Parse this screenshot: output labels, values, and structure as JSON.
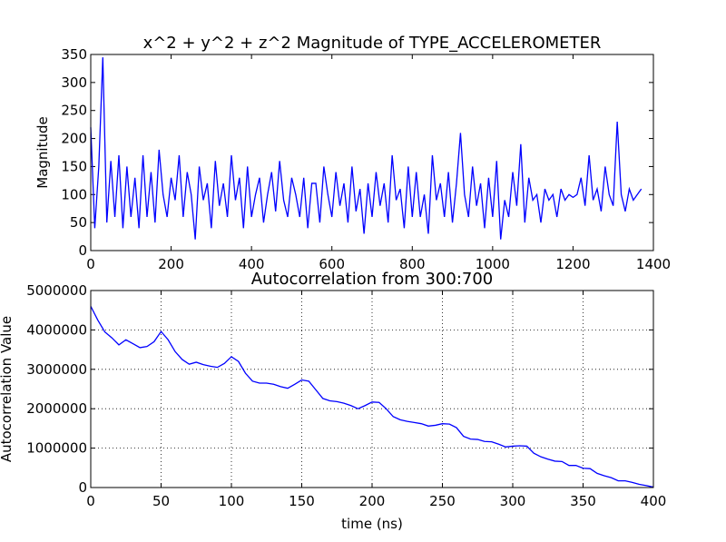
{
  "chart_data": [
    {
      "type": "line",
      "title": "x^2 + y^2 + z^2 Magnitude of TYPE_ACCELEROMETER",
      "ylabel": "Magnitude",
      "color": "#0000ff",
      "grid": false,
      "x": [
        0,
        10,
        20,
        30,
        40,
        50,
        60,
        70,
        80,
        90,
        100,
        110,
        120,
        130,
        140,
        150,
        160,
        170,
        180,
        190,
        200,
        210,
        220,
        230,
        240,
        250,
        260,
        270,
        280,
        290,
        300,
        310,
        320,
        330,
        340,
        350,
        360,
        370,
        380,
        390,
        400,
        410,
        420,
        430,
        440,
        450,
        460,
        470,
        480,
        490,
        500,
        510,
        520,
        530,
        540,
        550,
        560,
        570,
        580,
        590,
        600,
        610,
        620,
        630,
        640,
        650,
        660,
        670,
        680,
        690,
        700,
        710,
        720,
        730,
        740,
        750,
        760,
        770,
        780,
        790,
        800,
        810,
        820,
        830,
        840,
        850,
        860,
        870,
        880,
        890,
        900,
        910,
        920,
        930,
        940,
        950,
        960,
        970,
        980,
        990,
        1000,
        1010,
        1020,
        1030,
        1040,
        1050,
        1060,
        1070,
        1080,
        1090,
        1100,
        1110,
        1120,
        1130,
        1140,
        1150,
        1160,
        1170,
        1180,
        1190,
        1200,
        1210,
        1220,
        1230,
        1240,
        1250,
        1260,
        1270,
        1280,
        1290,
        1300,
        1310,
        1320,
        1330,
        1340,
        1350,
        1360,
        1370
      ],
      "values": [
        220,
        40,
        150,
        345,
        50,
        160,
        60,
        170,
        40,
        150,
        60,
        130,
        40,
        170,
        60,
        140,
        50,
        180,
        100,
        60,
        130,
        90,
        170,
        60,
        140,
        100,
        20,
        150,
        90,
        120,
        40,
        160,
        80,
        120,
        60,
        170,
        90,
        130,
        40,
        150,
        60,
        100,
        130,
        50,
        100,
        140,
        70,
        160,
        90,
        60,
        130,
        100,
        60,
        130,
        40,
        120,
        120,
        50,
        150,
        100,
        60,
        140,
        80,
        120,
        50,
        150,
        70,
        110,
        30,
        120,
        60,
        140,
        80,
        120,
        50,
        170,
        90,
        110,
        40,
        150,
        60,
        140,
        60,
        100,
        30,
        170,
        90,
        120,
        60,
        140,
        50,
        120,
        210,
        100,
        60,
        150,
        80,
        120,
        40,
        130,
        60,
        160,
        20,
        90,
        60,
        140,
        80,
        190,
        50,
        130,
        90,
        100,
        50,
        110,
        90,
        100,
        60,
        110,
        90,
        100,
        95,
        100,
        130,
        80,
        170,
        90,
        110,
        70,
        150,
        100,
        80,
        230,
        100,
        70,
        110,
        90,
        100,
        110
      ],
      "xlim": [
        0,
        1400
      ],
      "xticks": [
        0,
        200,
        400,
        600,
        800,
        1000,
        1200,
        1400
      ],
      "ylim": [
        0,
        350
      ],
      "yticks": [
        0,
        50,
        100,
        150,
        200,
        250,
        300,
        350
      ]
    },
    {
      "type": "line",
      "title": "Autocorrelation from 300:700",
      "xlabel": "time (ns)",
      "ylabel": "Autocorrelation Value",
      "color": "#0000ff",
      "grid": true,
      "x": [
        0,
        5,
        10,
        15,
        20,
        25,
        30,
        35,
        40,
        45,
        50,
        55,
        60,
        65,
        70,
        75,
        80,
        85,
        90,
        95,
        100,
        105,
        110,
        115,
        120,
        125,
        130,
        135,
        140,
        145,
        150,
        155,
        160,
        165,
        170,
        175,
        180,
        185,
        190,
        195,
        200,
        205,
        210,
        215,
        220,
        225,
        230,
        235,
        240,
        245,
        250,
        255,
        260,
        265,
        270,
        275,
        280,
        285,
        290,
        295,
        300,
        305,
        310,
        315,
        320,
        325,
        330,
        335,
        340,
        345,
        350,
        355,
        360,
        365,
        370,
        375,
        380,
        385,
        390,
        395,
        400
      ],
      "values": [
        4600000,
        4250000,
        3950000,
        3800000,
        3620000,
        3750000,
        3650000,
        3550000,
        3580000,
        3700000,
        3960000,
        3750000,
        3450000,
        3250000,
        3130000,
        3180000,
        3120000,
        3080000,
        3050000,
        3150000,
        3320000,
        3200000,
        2900000,
        2700000,
        2650000,
        2650000,
        2620000,
        2560000,
        2520000,
        2620000,
        2730000,
        2700000,
        2480000,
        2260000,
        2200000,
        2180000,
        2140000,
        2080000,
        2000000,
        2080000,
        2170000,
        2160000,
        2000000,
        1800000,
        1720000,
        1680000,
        1650000,
        1620000,
        1560000,
        1580000,
        1620000,
        1610000,
        1520000,
        1300000,
        1230000,
        1220000,
        1170000,
        1160000,
        1100000,
        1030000,
        1050000,
        1060000,
        1050000,
        870000,
        780000,
        720000,
        670000,
        660000,
        560000,
        560000,
        490000,
        480000,
        360000,
        300000,
        250000,
        170000,
        170000,
        130000,
        80000,
        50000,
        10000
      ],
      "xlim": [
        0,
        400
      ],
      "xticks": [
        0,
        50,
        100,
        150,
        200,
        250,
        300,
        350,
        400
      ],
      "ylim": [
        0,
        5000000
      ],
      "yticks": [
        0,
        1000000,
        2000000,
        3000000,
        4000000,
        5000000
      ]
    }
  ]
}
